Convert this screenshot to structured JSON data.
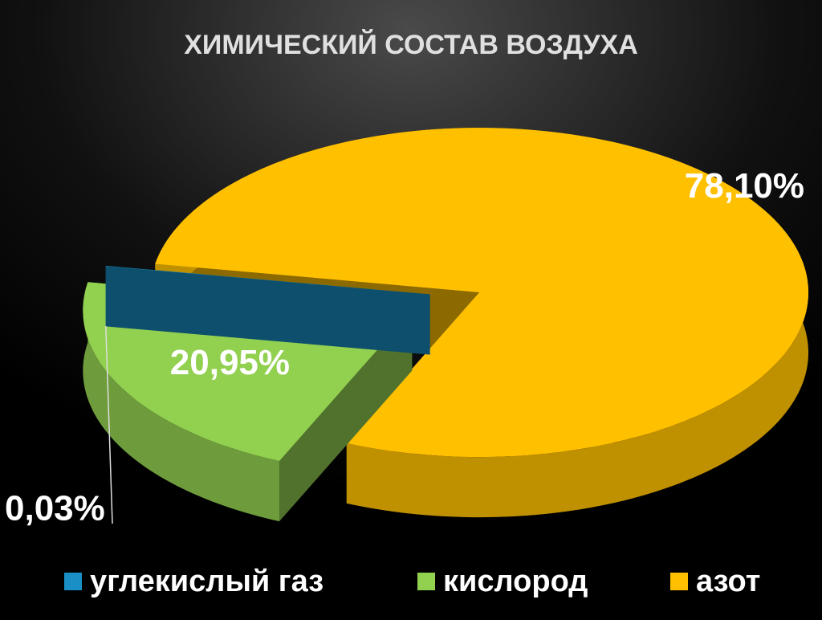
{
  "chart_data": {
    "type": "pie3d",
    "title": "ХИМИЧЕСКИЙ СОСТАВ ВОЗДУХА",
    "categories": [
      "углекислый газ",
      "кислород",
      "азот"
    ],
    "values": [
      0.03,
      20.95,
      78.1
    ],
    "value_labels": [
      "0,03%",
      "20,95%",
      "78,10%"
    ],
    "colors": [
      "#1a8fc6",
      "#92d050",
      "#ffc000"
    ],
    "legend": "bottom"
  }
}
